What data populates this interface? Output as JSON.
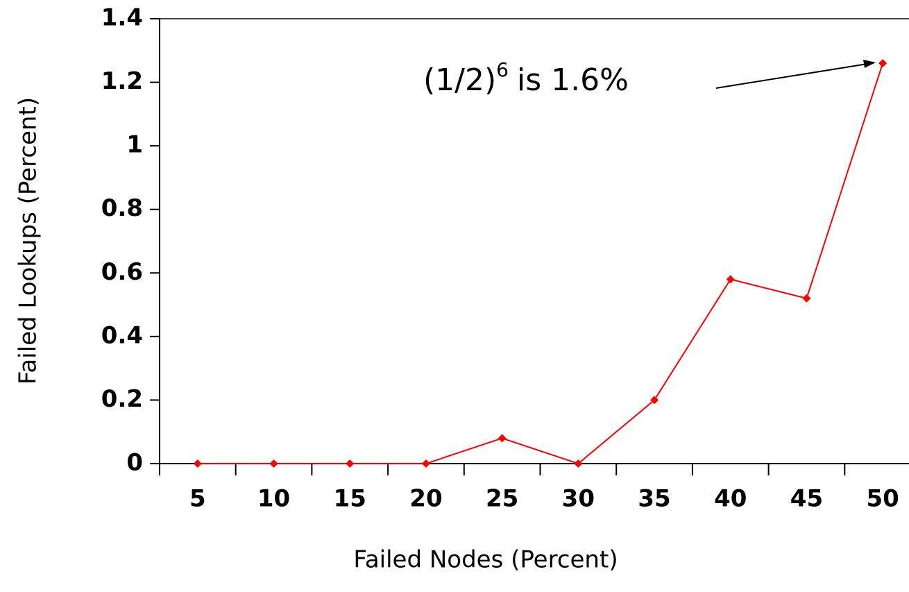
{
  "chart_data": {
    "type": "line",
    "x_label": "Failed Nodes (Percent)",
    "y_label": "Failed Lookups (Percent)",
    "categories": [
      "5",
      "10",
      "15",
      "20",
      "25",
      "30",
      "35",
      "40",
      "45",
      "50"
    ],
    "series": [
      {
        "name": "Failed Lookups",
        "color": "#ff0000",
        "values": [
          0,
          0,
          0,
          0,
          0.08,
          0,
          0.2,
          0.58,
          0.52,
          1.26
        ]
      }
    ],
    "ylim": [
      0,
      1.4
    ],
    "yticks": [
      0,
      0.2,
      0.4,
      0.6,
      0.8,
      1,
      1.2,
      1.4
    ],
    "annotation": {
      "base": "(1/2)",
      "sup": "6",
      "text": "is 1.6%"
    },
    "legend": false,
    "grid": false
  }
}
